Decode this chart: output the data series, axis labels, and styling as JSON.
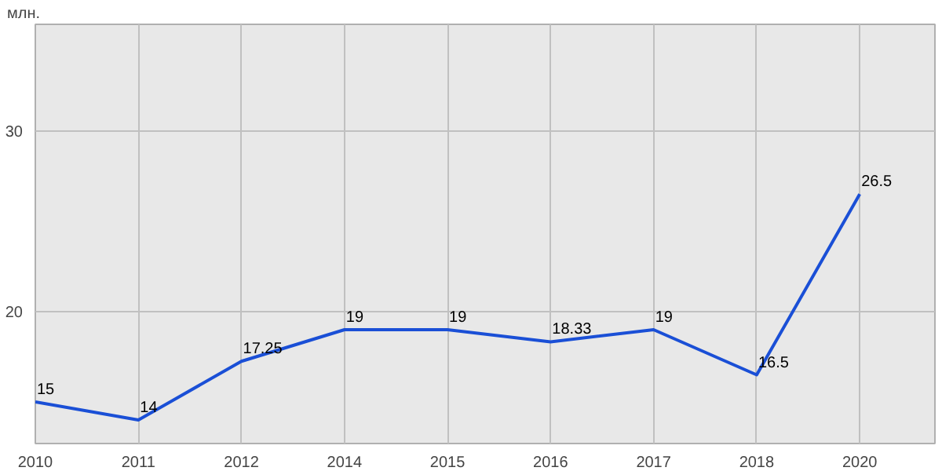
{
  "chart_data": {
    "type": "line",
    "ylabel": "млн.",
    "categories": [
      "2010",
      "2011",
      "2012",
      "2014",
      "2015",
      "2016",
      "2017",
      "2018",
      "2020"
    ],
    "series": [
      {
        "color": "#1a4fd6",
        "values": [
          15,
          14,
          17.25,
          19,
          19,
          18.33,
          19,
          16.5,
          26.5
        ]
      }
    ],
    "ylim": [
      12.7,
      35.9
    ],
    "yticks": [
      20,
      30
    ],
    "grid": true,
    "data_labels": true,
    "marker": "none",
    "line_style": "solid"
  }
}
